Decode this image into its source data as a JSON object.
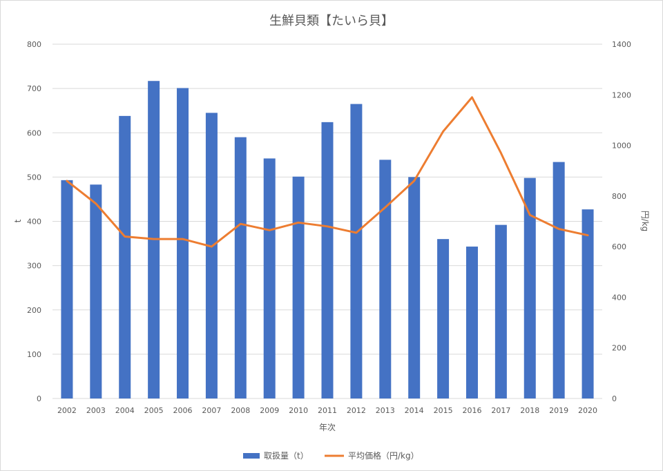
{
  "chart_data": {
    "type": "bar",
    "title": "生鮮貝類【たいら貝】",
    "xlabel": "年次",
    "ylabel": "t",
    "y2label": "円/kg",
    "categories": [
      "2002",
      "2003",
      "2004",
      "2005",
      "2006",
      "2007",
      "2008",
      "2009",
      "2010",
      "2011",
      "2012",
      "2013",
      "2014",
      "2015",
      "2016",
      "2017",
      "2018",
      "2019",
      "2020"
    ],
    "ylim": [
      0,
      800
    ],
    "yticks": [
      0,
      100,
      200,
      300,
      400,
      500,
      600,
      700,
      800
    ],
    "y2lim": [
      0,
      1400
    ],
    "y2ticks": [
      0,
      200,
      400,
      600,
      800,
      1000,
      1200,
      1400
    ],
    "grid": true,
    "legend_position": "bottom",
    "series": [
      {
        "name": "取扱量（t）",
        "type": "bar",
        "axis": "left",
        "color": "#4472c4",
        "values": [
          493,
          483,
          638,
          717,
          701,
          645,
          590,
          542,
          501,
          624,
          665,
          539,
          500,
          360,
          343,
          392,
          498,
          534,
          427
        ]
      },
      {
        "name": "平均価格（円/kg）",
        "type": "line",
        "axis": "right",
        "color": "#ed7d31",
        "values": [
          860,
          770,
          640,
          630,
          630,
          600,
          690,
          665,
          695,
          680,
          655,
          755,
          860,
          1055,
          1190,
          970,
          725,
          670,
          645
        ]
      }
    ]
  }
}
